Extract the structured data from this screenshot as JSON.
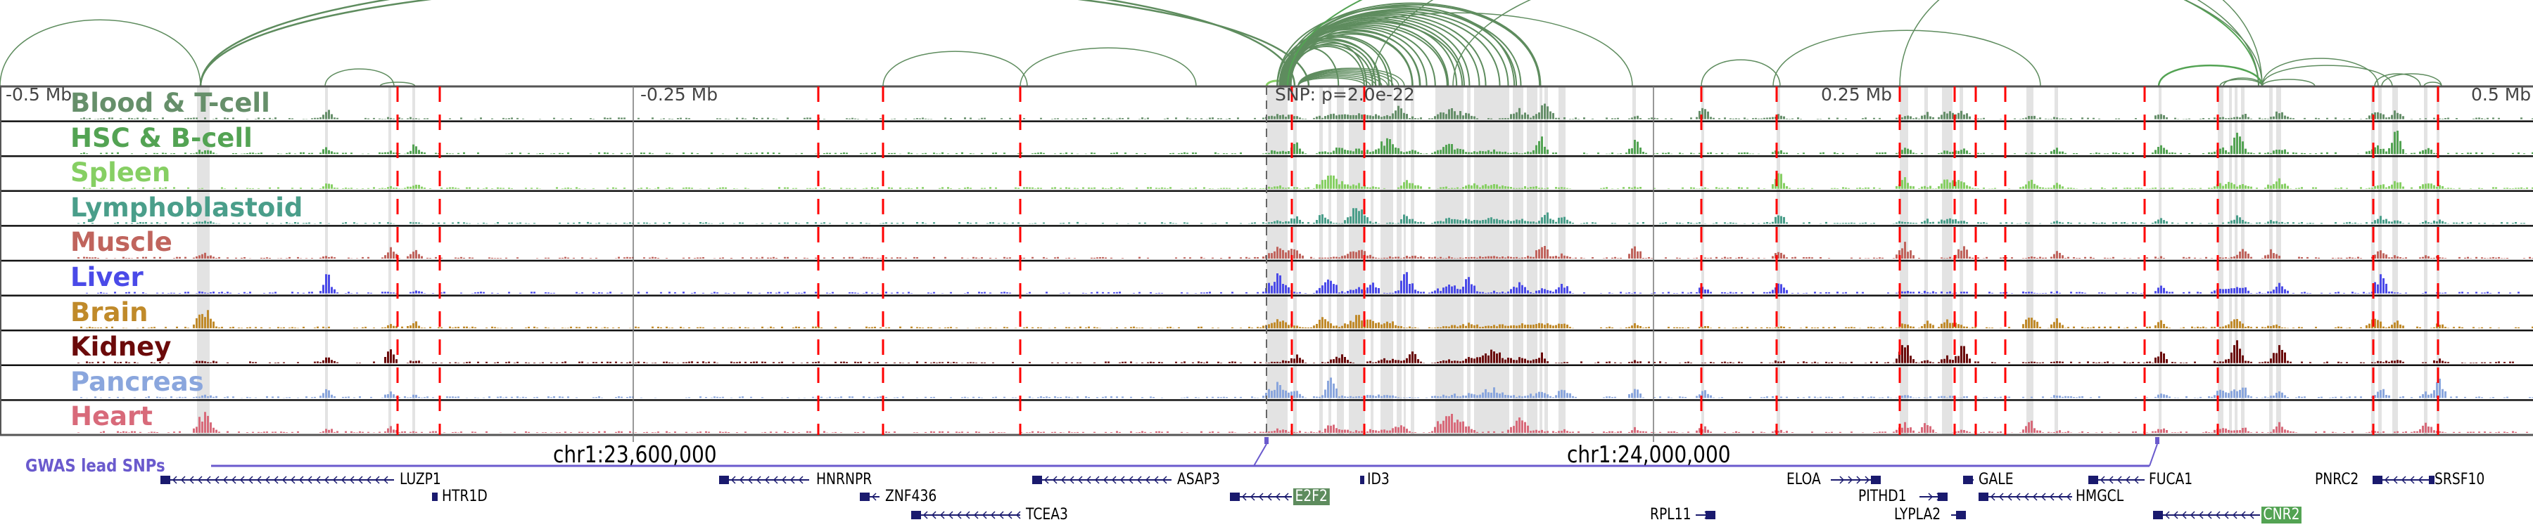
{
  "tracks": [
    {
      "label": "Blood & T-cell",
      "color": "#668f6a"
    },
    {
      "label": "HSC & B-cell",
      "color": "#53a353"
    },
    {
      "label": "Spleen",
      "color": "#86cf63"
    },
    {
      "label": "Lymphoblastoid",
      "color": "#4a9e8a"
    },
    {
      "label": "Muscle",
      "color": "#c0645d"
    },
    {
      "label": "Liver",
      "color": "#4a4ae8"
    },
    {
      "label": "Brain",
      "color": "#c08a2a"
    },
    {
      "label": "Kidney",
      "color": "#6b0a0a"
    },
    {
      "label": "Pancreas",
      "color": "#8aa6dd"
    },
    {
      "label": "Heart",
      "color": "#d86a7a"
    }
  ],
  "axis": {
    "minus_half": "-0.5 Mb",
    "minus_quarter": "-0.25 Mb",
    "snp": "SNP: p=2.0e-22",
    "plus_quarter": "0.25 Mb",
    "plus_half": "0.5 Mb"
  },
  "coords": {
    "left": "chr1:23,600,000",
    "right": "chr1:24,000,000"
  },
  "gwas_label": "GWAS lead SNPs",
  "genes": [
    {
      "name": "LUZP1",
      "highlight": null
    },
    {
      "name": "HTR1D",
      "highlight": null
    },
    {
      "name": "HNRNPR",
      "highlight": null
    },
    {
      "name": "ZNF436",
      "highlight": null
    },
    {
      "name": "TCEA3",
      "highlight": null
    },
    {
      "name": "ASAP3",
      "highlight": null
    },
    {
      "name": "E2F2",
      "highlight": "#5e8c5e"
    },
    {
      "name": "ID3",
      "highlight": null
    },
    {
      "name": "RPL11",
      "highlight": null
    },
    {
      "name": "ELOA",
      "highlight": null
    },
    {
      "name": "PITHD1",
      "highlight": null
    },
    {
      "name": "GALE",
      "highlight": null
    },
    {
      "name": "LYPLA2",
      "highlight": null
    },
    {
      "name": "HMGCL",
      "highlight": null
    },
    {
      "name": "FUCA1",
      "highlight": null
    },
    {
      "name": "CNR2",
      "highlight": "#53a353"
    },
    {
      "name": "PNRC2",
      "highlight": null
    },
    {
      "name": "SRSF10",
      "highlight": null
    }
  ],
  "colors": {
    "gene": "#1a1a6e",
    "gwas": "#6a5acd",
    "snp_line": "#ff0000",
    "band": "#e3e3e3",
    "arc": "#5e8c5e"
  }
}
